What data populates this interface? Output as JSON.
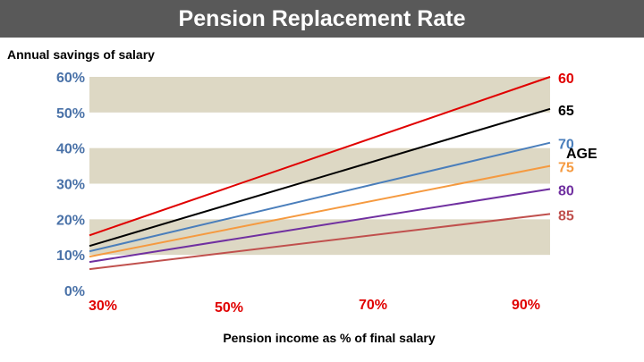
{
  "chart_data": {
    "type": "line",
    "title": "Pension Replacement Rate",
    "ylabel": "Annual savings of salary",
    "xlabel": "Pension income as % of final salary",
    "y_ticks": [
      "0%",
      "10%",
      "20%",
      "30%",
      "40%",
      "50%",
      "60%"
    ],
    "x_ticks": [
      "30%",
      "50%",
      "70%",
      "90%"
    ],
    "x": [
      30,
      92
    ],
    "ylim": [
      0,
      60
    ],
    "legend_title": "AGE",
    "bands": [
      [
        10,
        20
      ],
      [
        30,
        40
      ],
      [
        50,
        60
      ]
    ],
    "band_color": "#ddd8c4",
    "axis_color": "#4a72a8",
    "tick_red": "#e00000",
    "series": [
      {
        "name": "60",
        "values": [
          15.5,
          60.0
        ],
        "color": "#e00000"
      },
      {
        "name": "65",
        "values": [
          12.5,
          51.0
        ],
        "color": "#000000"
      },
      {
        "name": "70",
        "values": [
          11.0,
          41.5
        ],
        "color": "#4a7ebb"
      },
      {
        "name": "75",
        "values": [
          9.5,
          35.0
        ],
        "color": "#f59a40"
      },
      {
        "name": "80",
        "values": [
          8.0,
          28.5
        ],
        "color": "#7030a0"
      },
      {
        "name": "85",
        "values": [
          6.0,
          21.5
        ],
        "color": "#c0504d"
      }
    ]
  }
}
